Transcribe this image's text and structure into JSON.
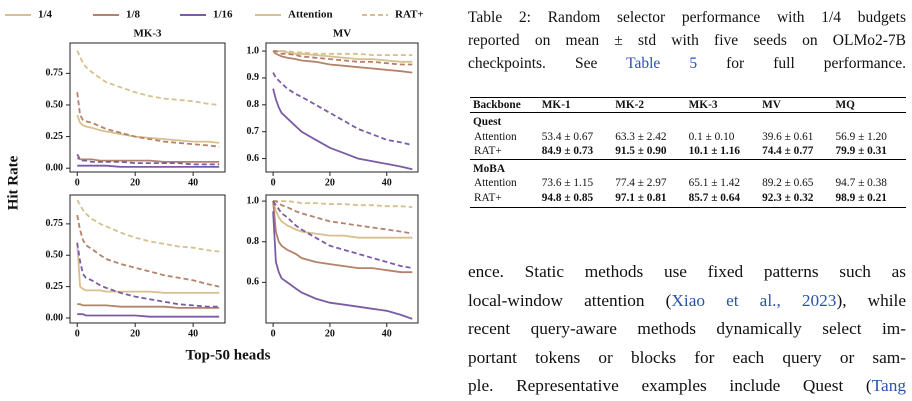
{
  "figure": {
    "legend": [
      {
        "label": "1/4",
        "color": "#d8bf8e",
        "dashed": false
      },
      {
        "label": "1/8",
        "color": "#b4826a",
        "dashed": false
      },
      {
        "label": "1/16",
        "color": "#7b5ba6",
        "dashed": false
      },
      {
        "label": "Attention",
        "color": "#d8bf8e",
        "dashed": false
      },
      {
        "label": "RAT+",
        "color": "#d8bf8e",
        "dashed": true
      }
    ],
    "ylabel": "Hit Rate",
    "xlabel": "Top-50 heads"
  },
  "chart_data": [
    {
      "type": "line",
      "title": "MK-3",
      "x": [
        0,
        1,
        2,
        3,
        5,
        8,
        10,
        15,
        20,
        25,
        30,
        35,
        40,
        45,
        49
      ],
      "xlim": [
        -2.5,
        51
      ],
      "xticks": [
        0,
        20,
        40
      ],
      "ylim": [
        -0.03,
        0.99
      ],
      "yticks": [
        {
          "value": 0,
          "label": "0.00"
        },
        0.25,
        {
          "value": 0.5,
          "label": "0.50"
        },
        0.75
      ],
      "series": [
        {
          "color": "#d8bf8e",
          "dashed": true,
          "values": [
            0.93,
            0.88,
            0.83,
            0.8,
            0.76,
            0.71,
            0.68,
            0.64,
            0.6,
            0.57,
            0.55,
            0.54,
            0.53,
            0.51,
            0.5
          ]
        },
        {
          "color": "#d8bf8e",
          "dashed": false,
          "values": [
            0.42,
            0.36,
            0.34,
            0.33,
            0.32,
            0.3,
            0.29,
            0.27,
            0.25,
            0.24,
            0.23,
            0.22,
            0.21,
            0.21,
            0.2
          ]
        },
        {
          "color": "#b4826a",
          "dashed": true,
          "values": [
            0.6,
            0.42,
            0.38,
            0.37,
            0.36,
            0.33,
            0.31,
            0.28,
            0.25,
            0.23,
            0.21,
            0.2,
            0.19,
            0.18,
            0.17
          ]
        },
        {
          "color": "#b4826a",
          "dashed": false,
          "values": [
            0.08,
            0.07,
            0.07,
            0.07,
            0.07,
            0.06,
            0.06,
            0.06,
            0.06,
            0.06,
            0.05,
            0.05,
            0.05,
            0.05,
            0.05
          ]
        },
        {
          "color": "#7b5ba6",
          "dashed": true,
          "values": [
            0.11,
            0.07,
            0.06,
            0.06,
            0.05,
            0.05,
            0.05,
            0.05,
            0.04,
            0.04,
            0.04,
            0.04,
            0.03,
            0.03,
            0.03
          ]
        },
        {
          "color": "#7b5ba6",
          "dashed": false,
          "values": [
            0.02,
            0.02,
            0.02,
            0.02,
            0.02,
            0.02,
            0.02,
            0.01,
            0.01,
            0.01,
            0.01,
            0.01,
            0.01,
            0.01,
            0.01
          ]
        }
      ]
    },
    {
      "type": "line",
      "title": "MV",
      "x": [
        0,
        1,
        2,
        3,
        5,
        8,
        10,
        15,
        20,
        25,
        30,
        35,
        40,
        45,
        49
      ],
      "xlim": [
        -2.5,
        51
      ],
      "xticks": [
        0,
        20,
        40
      ],
      "ylim": [
        0.55,
        1.03
      ],
      "yticks": [
        0.6,
        0.7,
        0.8,
        0.9,
        {
          "value": 1,
          "label": "1.0"
        }
      ],
      "series": [
        {
          "color": "#d8bf8e",
          "dashed": true,
          "values": [
            1,
            1,
            1,
            1,
            1,
            0.995,
            0.995,
            0.99,
            0.99,
            0.99,
            0.99,
            0.985,
            0.985,
            0.985,
            0.985
          ]
        },
        {
          "color": "#d8bf8e",
          "dashed": false,
          "values": [
            1,
            1,
            1,
            1,
            0.995,
            0.99,
            0.99,
            0.985,
            0.98,
            0.975,
            0.97,
            0.97,
            0.965,
            0.96,
            0.96
          ]
        },
        {
          "color": "#b4826a",
          "dashed": true,
          "values": [
            1,
            1,
            0.995,
            0.99,
            0.99,
            0.985,
            0.98,
            0.975,
            0.97,
            0.965,
            0.96,
            0.96,
            0.955,
            0.95,
            0.95
          ]
        },
        {
          "color": "#b4826a",
          "dashed": false,
          "values": [
            1,
            0.99,
            0.985,
            0.98,
            0.975,
            0.97,
            0.965,
            0.96,
            0.95,
            0.945,
            0.94,
            0.935,
            0.93,
            0.925,
            0.92
          ]
        },
        {
          "color": "#7b5ba6",
          "dashed": true,
          "values": [
            0.92,
            0.9,
            0.89,
            0.88,
            0.86,
            0.84,
            0.83,
            0.8,
            0.77,
            0.74,
            0.71,
            0.69,
            0.67,
            0.66,
            0.65
          ]
        },
        {
          "color": "#7b5ba6",
          "dashed": false,
          "values": [
            0.86,
            0.82,
            0.79,
            0.77,
            0.75,
            0.72,
            0.7,
            0.67,
            0.64,
            0.62,
            0.6,
            0.59,
            0.58,
            0.57,
            0.56
          ]
        }
      ]
    },
    {
      "type": "line",
      "x": [
        0,
        1,
        2,
        3,
        5,
        8,
        10,
        15,
        20,
        25,
        30,
        35,
        40,
        45,
        49
      ],
      "xlim": [
        -2.5,
        51
      ],
      "xticks": [
        0,
        20,
        40
      ],
      "ylim": [
        -0.04,
        0.98
      ],
      "yticks": [
        {
          "value": 0,
          "label": "0.00"
        },
        0.25,
        {
          "value": 0.5,
          "label": "0.50"
        },
        0.75
      ],
      "series": [
        {
          "color": "#d8bf8e",
          "dashed": true,
          "values": [
            0.94,
            0.9,
            0.86,
            0.83,
            0.79,
            0.75,
            0.73,
            0.68,
            0.64,
            0.61,
            0.59,
            0.57,
            0.56,
            0.54,
            0.53
          ]
        },
        {
          "color": "#d8bf8e",
          "dashed": false,
          "values": [
            0.6,
            0.25,
            0.23,
            0.22,
            0.22,
            0.22,
            0.21,
            0.21,
            0.21,
            0.21,
            0.2,
            0.2,
            0.2,
            0.2,
            0.2
          ]
        },
        {
          "color": "#b4826a",
          "dashed": true,
          "values": [
            0.82,
            0.7,
            0.62,
            0.58,
            0.55,
            0.5,
            0.47,
            0.43,
            0.4,
            0.37,
            0.34,
            0.32,
            0.3,
            0.27,
            0.25
          ]
        },
        {
          "color": "#b4826a",
          "dashed": false,
          "values": [
            0.11,
            0.11,
            0.1,
            0.1,
            0.1,
            0.1,
            0.1,
            0.09,
            0.09,
            0.09,
            0.09,
            0.08,
            0.08,
            0.08,
            0.08
          ]
        },
        {
          "color": "#7b5ba6",
          "dashed": true,
          "values": [
            0.6,
            0.45,
            0.35,
            0.32,
            0.3,
            0.26,
            0.24,
            0.2,
            0.17,
            0.15,
            0.13,
            0.11,
            0.1,
            0.09,
            0.09
          ]
        },
        {
          "color": "#7b5ba6",
          "dashed": false,
          "values": [
            0.03,
            0.03,
            0.03,
            0.02,
            0.02,
            0.02,
            0.02,
            0.02,
            0.02,
            0.01,
            0.01,
            0.01,
            0.01,
            0.01,
            0.01
          ]
        }
      ]
    },
    {
      "type": "line",
      "x": [
        0,
        1,
        2,
        3,
        5,
        8,
        10,
        15,
        20,
        25,
        30,
        35,
        40,
        45,
        49
      ],
      "xlim": [
        -2.5,
        51
      ],
      "xticks": [
        0,
        20,
        40
      ],
      "ylim": [
        0.4,
        1.03
      ],
      "yticks": [
        0.6,
        0.8,
        {
          "value": 1,
          "label": "1.0"
        }
      ],
      "series": [
        {
          "color": "#d8bf8e",
          "dashed": true,
          "values": [
            1,
            1,
            1,
            1,
            1,
            0.995,
            0.99,
            0.99,
            0.985,
            0.985,
            0.98,
            0.98,
            0.975,
            0.975,
            0.97
          ]
        },
        {
          "color": "#d8bf8e",
          "dashed": false,
          "values": [
            1,
            0.95,
            0.92,
            0.9,
            0.88,
            0.86,
            0.85,
            0.84,
            0.83,
            0.83,
            0.82,
            0.82,
            0.82,
            0.82,
            0.82
          ]
        },
        {
          "color": "#b4826a",
          "dashed": true,
          "values": [
            1,
            1,
            0.99,
            0.98,
            0.97,
            0.95,
            0.94,
            0.92,
            0.9,
            0.89,
            0.88,
            0.87,
            0.86,
            0.85,
            0.84
          ]
        },
        {
          "color": "#b4826a",
          "dashed": false,
          "values": [
            1,
            0.85,
            0.8,
            0.78,
            0.76,
            0.74,
            0.72,
            0.7,
            0.69,
            0.68,
            0.67,
            0.67,
            0.66,
            0.65,
            0.65
          ]
        },
        {
          "color": "#7b5ba6",
          "dashed": true,
          "values": [
            1,
            0.98,
            0.96,
            0.94,
            0.92,
            0.88,
            0.86,
            0.82,
            0.78,
            0.76,
            0.74,
            0.72,
            0.7,
            0.68,
            0.67
          ]
        },
        {
          "color": "#7b5ba6",
          "dashed": false,
          "values": [
            0.95,
            0.7,
            0.65,
            0.62,
            0.6,
            0.57,
            0.55,
            0.52,
            0.5,
            0.49,
            0.48,
            0.47,
            0.46,
            0.44,
            0.42
          ]
        }
      ]
    }
  ],
  "table_caption": {
    "lines": [
      [
        {
          "text": "Table 2: Random selector performance with 1/4 budgets"
        }
      ],
      [
        {
          "text": "reported on mean ± std with five seeds on OLMo2-7B"
        }
      ],
      [
        {
          "text": "checkpoints. See "
        },
        {
          "text": "Table 5",
          "link": true
        },
        {
          "text": " for full performance."
        }
      ]
    ]
  },
  "table": {
    "header": [
      "Backbone",
      "MK-1",
      "MK-2",
      "MK-3",
      "MV",
      "MQ"
    ],
    "groups": [
      {
        "name": "Quest",
        "rows": [
          {
            "bold": false,
            "cells": [
              "Attention",
              "53.4 ± 0.67",
              "63.3 ± 2.42",
              "0.1 ± 0.10",
              "39.6 ± 0.61",
              "56.9 ± 1.20"
            ]
          },
          {
            "bold": true,
            "cells": [
              "RAT+",
              "84.9 ± 0.73",
              "91.5 ± 0.90",
              "10.1 ± 1.16",
              "74.4 ± 0.77",
              "79.9 ± 0.31"
            ]
          }
        ]
      },
      {
        "name": "MoBA",
        "rows": [
          {
            "bold": false,
            "cells": [
              "Attention",
              "73.6 ± 1.15",
              "77.4 ± 2.97",
              "65.1 ± 1.42",
              "89.2 ± 0.65",
              "94.7 ± 0.38"
            ]
          },
          {
            "bold": true,
            "cells": [
              "RAT+",
              "94.8 ± 0.85",
              "97.1 ± 0.81",
              "85.7 ± 0.64",
              "92.3 ± 0.32",
              "98.9 ± 0.21"
            ]
          }
        ]
      }
    ]
  },
  "body": {
    "lines": [
      [
        {
          "text": "ence. Static methods use fixed patterns such as"
        }
      ],
      [
        {
          "text": "local-window attention ("
        },
        {
          "text": "Xiao et al., 2023",
          "link": true
        },
        {
          "text": "), while"
        }
      ],
      [
        {
          "text": "recent query-aware methods dynamically select im-"
        }
      ],
      [
        {
          "text": "portant tokens or blocks for each query or sam-"
        }
      ],
      [
        {
          "text": "ple. Representative examples include Quest ("
        },
        {
          "text": "Tang",
          "link": true
        }
      ]
    ]
  }
}
